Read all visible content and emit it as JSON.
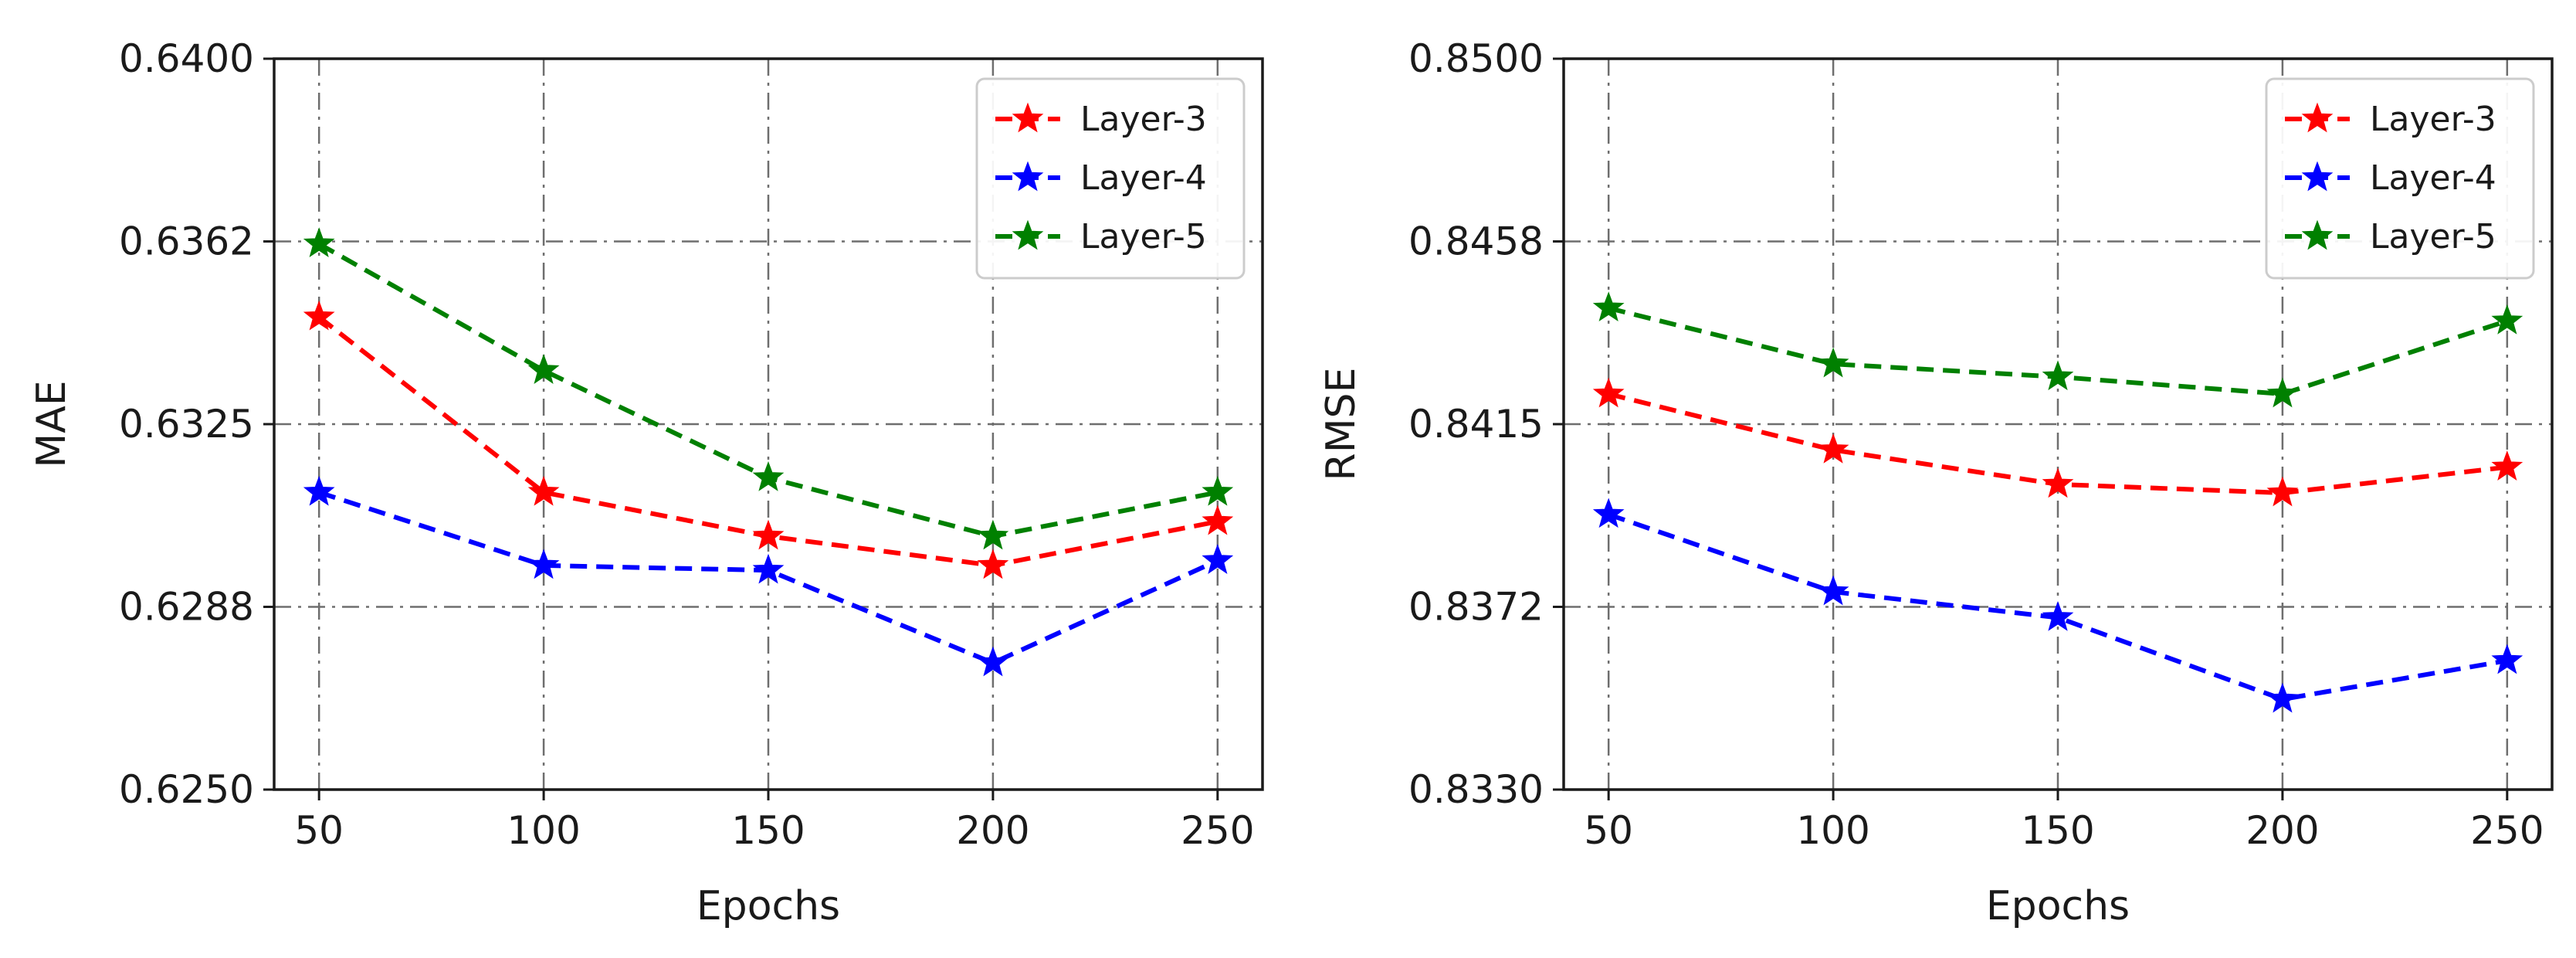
{
  "chart_data": [
    {
      "type": "line",
      "title": "",
      "xlabel": "Epochs",
      "ylabel": "MAE",
      "x": [
        50,
        100,
        150,
        200,
        250
      ],
      "xlim": [
        40,
        260
      ],
      "ylim": [
        0.625,
        0.64
      ],
      "yticks": [
        "0.6250",
        "0.6288",
        "0.6325",
        "0.6362",
        "0.6400"
      ],
      "xticks": [
        "50",
        "100",
        "150",
        "200",
        "250"
      ],
      "grid": true,
      "legend_position": "top-right",
      "series": [
        {
          "name": "Layer-3",
          "color": "#ff0000",
          "values": [
            0.6347,
            0.6311,
            0.6302,
            0.6296,
            0.6305
          ]
        },
        {
          "name": "Layer-4",
          "color": "#0000ff",
          "values": [
            0.6311,
            0.6296,
            0.6295,
            0.6276,
            0.6297
          ]
        },
        {
          "name": "Layer-5",
          "color": "#008000",
          "values": [
            0.6362,
            0.6336,
            0.6314,
            0.6302,
            0.6311
          ]
        }
      ]
    },
    {
      "type": "line",
      "title": "",
      "xlabel": "Epochs",
      "ylabel": "RMSE",
      "x": [
        50,
        100,
        150,
        200,
        250
      ],
      "xlim": [
        40,
        260
      ],
      "ylim": [
        0.833,
        0.85
      ],
      "yticks": [
        "0.8330",
        "0.8372",
        "0.8415",
        "0.8458",
        "0.8500"
      ],
      "xticks": [
        "50",
        "100",
        "150",
        "200",
        "250"
      ],
      "grid": true,
      "legend_position": "top-right",
      "series": [
        {
          "name": "Layer-3",
          "color": "#ff0000",
          "values": [
            0.8422,
            0.8409,
            0.8401,
            0.8399,
            0.8405
          ]
        },
        {
          "name": "Layer-4",
          "color": "#0000ff",
          "values": [
            0.8394,
            0.8376,
            0.837,
            0.8351,
            0.836
          ]
        },
        {
          "name": "Layer-5",
          "color": "#008000",
          "values": [
            0.8442,
            0.8429,
            0.8426,
            0.8422,
            0.8439
          ]
        }
      ]
    }
  ]
}
